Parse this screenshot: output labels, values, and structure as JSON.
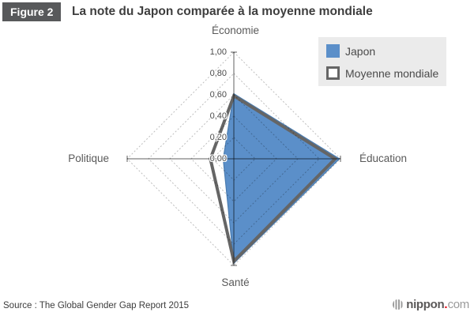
{
  "header": {
    "badge": "Figure 2",
    "title": "La note du Japon comparée à la moyenne mondiale"
  },
  "axis_labels": {
    "top": "Économie",
    "right": "Éducation",
    "bottom": "Santé",
    "left": "Politique"
  },
  "legend": {
    "items": [
      {
        "label": "Japon"
      },
      {
        "label": "Moyenne mondiale"
      }
    ]
  },
  "footer": {
    "source": "Source : The Global Gender Gap Report 2015",
    "logo_name": "nippon",
    "logo_dot": ".",
    "logo_tld": "com"
  },
  "colors": {
    "japon_fill": "#5b8fc9",
    "japon_edge": "#4a7cb0",
    "monde_stroke": "#656565",
    "grid": "rgba(0,0,0,0.26)",
    "axis": "rgba(0,0,0,0.62)",
    "legend_bg": "#ebebeb",
    "badge_bg": "#58595b"
  },
  "chart_data": {
    "type": "radar",
    "categories": [
      "Économie",
      "Éducation",
      "Santé",
      "Politique"
    ],
    "series": [
      {
        "name": "Japon",
        "values": [
          0.61,
          0.99,
          0.98,
          0.1
        ],
        "color": "#5b8fc9",
        "fill": true
      },
      {
        "name": "Moyenne mondiale",
        "values": [
          0.59,
          0.95,
          0.96,
          0.22
        ],
        "color": "#656565",
        "fill": false
      }
    ],
    "scale": {
      "min": 0,
      "max": 1,
      "tick_labels": [
        "1,00",
        "0,80",
        "0,60",
        "0,40",
        "0,20",
        "0,00"
      ],
      "tick_values": [
        1.0,
        0.8,
        0.6,
        0.4,
        0.2,
        0.0
      ]
    },
    "grid": "dashed-diamond-rings",
    "legend_position": "top-right"
  }
}
